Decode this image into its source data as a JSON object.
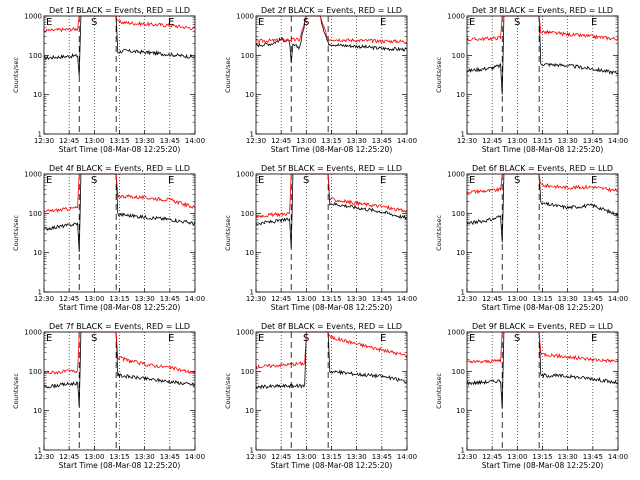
{
  "figure": {
    "time_ticks": [
      "12:30",
      "12:45",
      "13:00",
      "13:15",
      "13:30",
      "13:45",
      "14:00"
    ],
    "y_ticks": [
      "1",
      "10",
      "100",
      "1000"
    ],
    "xlabel": "Start Time (08-Mar-08 12:25:20)",
    "ylabel": "Counts/sec",
    "markers": [
      "E",
      "S",
      "E"
    ],
    "colors": {
      "events": "#000000",
      "lld": "#ff0000",
      "axes": "#000000"
    }
  },
  "chart_data": [
    {
      "type": "line",
      "title": "Det 1f BLACK = Events, RED = LLD",
      "xlabel": "Start Time (08-Mar-08 12:25:20)",
      "ylabel": "Counts/sec",
      "x_range": [
        "12:30",
        "14:00"
      ],
      "ylim": [
        1,
        1000
      ],
      "log_y": true,
      "series": [
        {
          "name": "Events",
          "color": "#000000",
          "points": [
            [
              "12:30",
              85
            ],
            [
              "12:45",
              95
            ],
            [
              "12:50",
              98
            ],
            [
              "12:51",
              30
            ],
            [
              "12:52",
              1000
            ],
            [
              "13:13",
              1000
            ],
            [
              "13:14",
              120
            ],
            [
              "13:18",
              130
            ],
            [
              "13:30",
              120
            ],
            [
              "13:45",
              105
            ],
            [
              "14:00",
              90
            ]
          ]
        },
        {
          "name": "LLD",
          "color": "#ff0000",
          "points": [
            [
              "12:30",
              420
            ],
            [
              "12:45",
              460
            ],
            [
              "12:50",
              470
            ],
            [
              "12:51",
              1000
            ],
            [
              "13:13",
              1000
            ],
            [
              "13:14",
              700
            ],
            [
              "13:30",
              620
            ],
            [
              "13:45",
              580
            ],
            [
              "14:00",
              480
            ]
          ]
        }
      ]
    },
    {
      "type": "line",
      "title": "Det 2f BLACK = Events, RED = LLD",
      "xlabel": "Start Time (08-Mar-08 12:25:20)",
      "ylabel": "Counts/sec",
      "x_range": [
        "12:30",
        "14:00"
      ],
      "ylim": [
        1,
        1000
      ],
      "log_y": true,
      "series": [
        {
          "name": "Events",
          "color": "#000000",
          "points": [
            [
              "12:30",
              180
            ],
            [
              "12:40",
              200
            ],
            [
              "12:45",
              260
            ],
            [
              "12:50",
              220
            ],
            [
              "12:51",
              60
            ],
            [
              "12:52",
              180
            ],
            [
              "12:56",
              160
            ],
            [
              "13:00",
              1000
            ],
            [
              "13:08",
              1000
            ],
            [
              "13:13",
              200
            ],
            [
              "13:20",
              180
            ],
            [
              "13:30",
              170
            ],
            [
              "13:45",
              150
            ],
            [
              "14:00",
              140
            ]
          ]
        },
        {
          "name": "LLD",
          "color": "#ff0000",
          "points": [
            [
              "12:30",
              230
            ],
            [
              "12:45",
              240
            ],
            [
              "12:50",
              250
            ],
            [
              "12:56",
              250
            ],
            [
              "13:00",
              1000
            ],
            [
              "13:08",
              1000
            ],
            [
              "13:13",
              260
            ],
            [
              "13:20",
              250
            ],
            [
              "13:30",
              240
            ],
            [
              "13:45",
              230
            ],
            [
              "14:00",
              225
            ]
          ]
        }
      ]
    },
    {
      "type": "line",
      "title": "Det 3f BLACK = Events, RED = LLD",
      "xlabel": "Start Time (08-Mar-08 12:25:20)",
      "ylabel": "Counts/sec",
      "x_range": [
        "12:30",
        "14:00"
      ],
      "ylim": [
        1,
        1000
      ],
      "log_y": true,
      "series": [
        {
          "name": "Events",
          "color": "#000000",
          "points": [
            [
              "12:30",
              40
            ],
            [
              "12:45",
              48
            ],
            [
              "12:50",
              55
            ],
            [
              "12:51",
              10
            ],
            [
              "12:52",
              1000
            ],
            [
              "13:13",
              1000
            ],
            [
              "13:14",
              60
            ],
            [
              "13:30",
              55
            ],
            [
              "13:45",
              45
            ],
            [
              "14:00",
              35
            ]
          ]
        },
        {
          "name": "LLD",
          "color": "#ff0000",
          "points": [
            [
              "12:30",
              250
            ],
            [
              "12:45",
              270
            ],
            [
              "12:50",
              280
            ],
            [
              "12:51",
              1000
            ],
            [
              "13:13",
              1000
            ],
            [
              "13:14",
              400
            ],
            [
              "13:30",
              340
            ],
            [
              "13:45",
              300
            ],
            [
              "14:00",
              260
            ]
          ]
        }
      ]
    },
    {
      "type": "line",
      "title": "Det 4f BLACK = Events, RED = LLD",
      "xlabel": "Start Time (08-Mar-08 12:25:20)",
      "ylabel": "Counts/sec",
      "x_range": [
        "12:30",
        "14:00"
      ],
      "ylim": [
        1,
        1000
      ],
      "log_y": true,
      "series": [
        {
          "name": "Events",
          "color": "#000000",
          "points": [
            [
              "12:30",
              40
            ],
            [
              "12:45",
              50
            ],
            [
              "12:50",
              55
            ],
            [
              "12:51",
              10
            ],
            [
              "12:52",
              1000
            ],
            [
              "13:13",
              1000
            ],
            [
              "13:14",
              95
            ],
            [
              "13:30",
              80
            ],
            [
              "13:45",
              70
            ],
            [
              "14:00",
              55
            ]
          ]
        },
        {
          "name": "LLD",
          "color": "#ff0000",
          "points": [
            [
              "12:30",
              110
            ],
            [
              "12:45",
              130
            ],
            [
              "12:50",
              140
            ],
            [
              "12:51",
              1000
            ],
            [
              "13:13",
              1000
            ],
            [
              "13:14",
              280
            ],
            [
              "13:30",
              250
            ],
            [
              "13:45",
              220
            ],
            [
              "14:00",
              140
            ]
          ]
        }
      ]
    },
    {
      "type": "line",
      "title": "Det 5f BLACK = Events, RED = LLD",
      "xlabel": "Start Time (08-Mar-08 12:25:20)",
      "ylabel": "Counts/sec",
      "x_range": [
        "12:30",
        "14:00"
      ],
      "ylim": [
        1,
        1000
      ],
      "log_y": true,
      "series": [
        {
          "name": "Events",
          "color": "#000000",
          "points": [
            [
              "12:30",
              55
            ],
            [
              "12:45",
              65
            ],
            [
              "12:50",
              70
            ],
            [
              "12:51",
              12
            ],
            [
              "12:52",
              1000
            ],
            [
              "13:13",
              1000
            ],
            [
              "13:14",
              180
            ],
            [
              "13:30",
              140
            ],
            [
              "13:45",
              110
            ],
            [
              "14:00",
              75
            ]
          ]
        },
        {
          "name": "LLD",
          "color": "#ff0000",
          "points": [
            [
              "12:30",
              85
            ],
            [
              "12:45",
              95
            ],
            [
              "12:50",
              100
            ],
            [
              "12:51",
              1000
            ],
            [
              "13:13",
              1000
            ],
            [
              "13:14",
              230
            ],
            [
              "13:30",
              180
            ],
            [
              "13:45",
              150
            ],
            [
              "14:00",
              110
            ]
          ]
        }
      ]
    },
    {
      "type": "line",
      "title": "Det 6f BLACK = Events, RED = LLD",
      "xlabel": "Start Time (08-Mar-08 12:25:20)",
      "ylabel": "Counts/sec",
      "x_range": [
        "12:30",
        "14:00"
      ],
      "ylim": [
        1,
        1000
      ],
      "log_y": true,
      "series": [
        {
          "name": "Events",
          "color": "#000000",
          "points": [
            [
              "12:30",
              55
            ],
            [
              "12:45",
              70
            ],
            [
              "12:50",
              85
            ],
            [
              "12:51",
              20
            ],
            [
              "12:52",
              1000
            ],
            [
              "13:13",
              1000
            ],
            [
              "13:14",
              180
            ],
            [
              "13:30",
              140
            ],
            [
              "13:45",
              160
            ],
            [
              "14:00",
              90
            ]
          ]
        },
        {
          "name": "LLD",
          "color": "#ff0000",
          "points": [
            [
              "12:30",
              350
            ],
            [
              "12:45",
              380
            ],
            [
              "12:50",
              400
            ],
            [
              "12:51",
              1000
            ],
            [
              "13:13",
              1000
            ],
            [
              "13:14",
              520
            ],
            [
              "13:30",
              450
            ],
            [
              "13:45",
              470
            ],
            [
              "14:00",
              370
            ]
          ]
        }
      ]
    },
    {
      "type": "line",
      "title": "Det 7f BLACK = Events, RED = LLD",
      "xlabel": "Start Time (08-Mar-08 12:25:20)",
      "ylabel": "Counts/sec",
      "x_range": [
        "12:30",
        "14:00"
      ],
      "ylim": [
        1,
        1000
      ],
      "log_y": true,
      "series": [
        {
          "name": "Events",
          "color": "#000000",
          "points": [
            [
              "12:30",
              40
            ],
            [
              "12:45",
              48
            ],
            [
              "12:50",
              50
            ],
            [
              "12:51",
              12
            ],
            [
              "12:52",
              1000
            ],
            [
              "13:13",
              1000
            ],
            [
              "13:14",
              80
            ],
            [
              "13:30",
              65
            ],
            [
              "13:45",
              55
            ],
            [
              "14:00",
              45
            ]
          ]
        },
        {
          "name": "LLD",
          "color": "#ff0000",
          "points": [
            [
              "12:30",
              90
            ],
            [
              "12:45",
              100
            ],
            [
              "12:50",
              100
            ],
            [
              "12:51",
              1000
            ],
            [
              "13:13",
              1000
            ],
            [
              "13:14",
              220
            ],
            [
              "13:30",
              150
            ],
            [
              "13:45",
              125
            ],
            [
              "14:00",
              90
            ]
          ]
        }
      ]
    },
    {
      "type": "line",
      "title": "Det 8f BLACK = Events, RED = LLD",
      "xlabel": "Start Time (08-Mar-08 12:25:20)",
      "ylabel": "Counts/sec",
      "x_range": [
        "12:30",
        "14:00"
      ],
      "ylim": [
        1,
        1000
      ],
      "log_y": true,
      "series": [
        {
          "name": "Events",
          "color": "#000000",
          "points": [
            [
              "12:30",
              40
            ],
            [
              "12:45",
              42
            ],
            [
              "12:50",
              43
            ],
            [
              "12:51",
              42
            ],
            [
              "12:59",
              43
            ],
            [
              "13:00",
              1000
            ],
            [
              "13:13",
              1000
            ],
            [
              "13:14",
              100
            ],
            [
              "13:30",
              85
            ],
            [
              "13:45",
              75
            ],
            [
              "14:00",
              55
            ]
          ]
        },
        {
          "name": "LLD",
          "color": "#ff0000",
          "points": [
            [
              "12:30",
              130
            ],
            [
              "12:45",
              145
            ],
            [
              "12:50",
              150
            ],
            [
              "12:59",
              160
            ],
            [
              "13:00",
              1000
            ],
            [
              "13:13",
              1000
            ],
            [
              "13:14",
              750
            ],
            [
              "13:30",
              500
            ],
            [
              "13:45",
              350
            ],
            [
              "14:00",
              250
            ]
          ]
        }
      ]
    },
    {
      "type": "line",
      "title": "Det 9f BLACK = Events, RED = LLD",
      "xlabel": "Start Time (08-Mar-08 12:25:20)",
      "ylabel": "Counts/sec",
      "x_range": [
        "12:30",
        "14:00"
      ],
      "ylim": [
        1,
        1000
      ],
      "log_y": true,
      "series": [
        {
          "name": "Events",
          "color": "#000000",
          "points": [
            [
              "12:30",
              50
            ],
            [
              "12:45",
              55
            ],
            [
              "12:50",
              58
            ],
            [
              "12:51",
              12
            ],
            [
              "12:52",
              1000
            ],
            [
              "13:13",
              1000
            ],
            [
              "13:14",
              80
            ],
            [
              "13:30",
              75
            ],
            [
              "13:45",
              65
            ],
            [
              "14:00",
              50
            ]
          ]
        },
        {
          "name": "LLD",
          "color": "#ff0000",
          "points": [
            [
              "12:30",
              170
            ],
            [
              "12:45",
              180
            ],
            [
              "12:50",
              190
            ],
            [
              "12:51",
              1000
            ],
            [
              "13:13",
              1000
            ],
            [
              "13:14",
              280
            ],
            [
              "13:30",
              230
            ],
            [
              "13:45",
              200
            ],
            [
              "14:00",
              180
            ]
          ]
        }
      ]
    }
  ]
}
